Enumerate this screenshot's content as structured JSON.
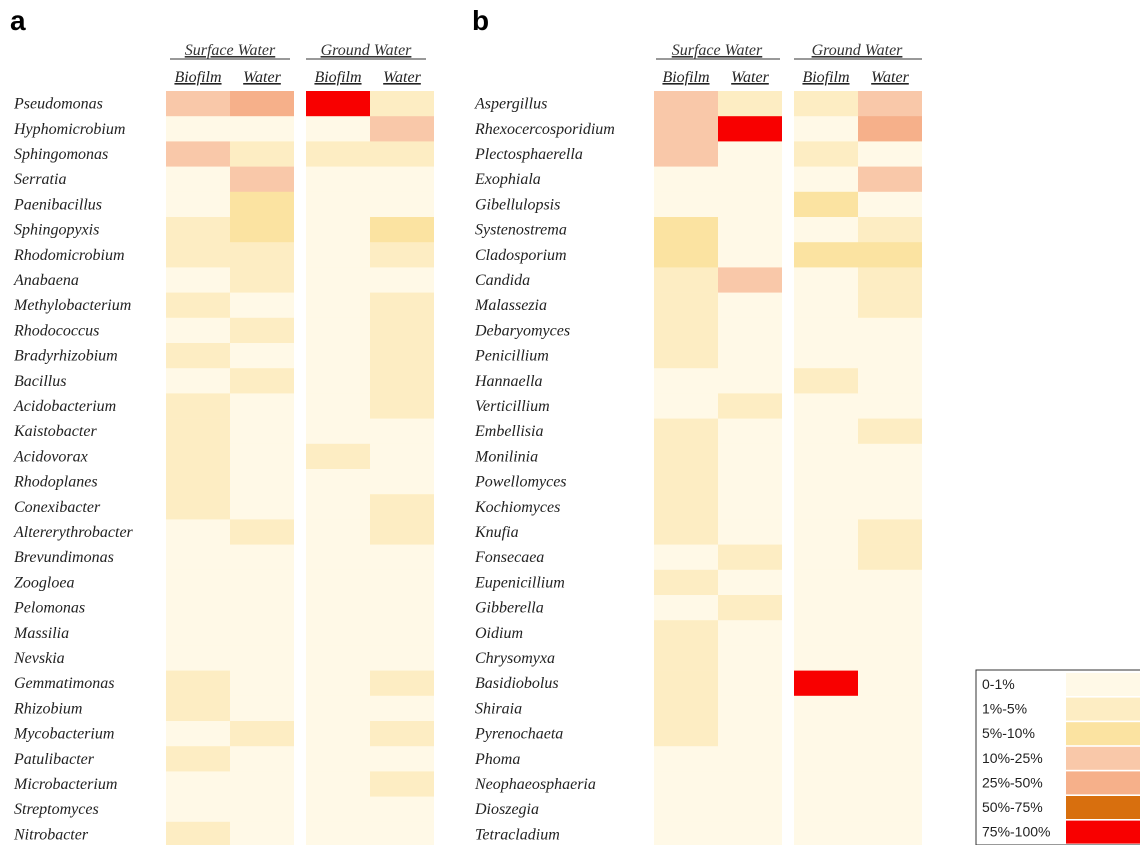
{
  "chart_data": [
    {
      "type": "heatmap",
      "panel": "a",
      "groups": [
        "Surface Water",
        "Ground Water"
      ],
      "columns": [
        "Biofilm",
        "Water",
        "Biofilm",
        "Water"
      ],
      "rows": [
        "Pseudomonas",
        "Hyphomicrobium",
        "Sphingomonas",
        "Serratia",
        "Paenibacillus",
        "Sphingopyxis",
        "Rhodomicrobium",
        "Anabaena",
        "Methylobacterium",
        "Rhodococcus",
        "Bradyrhizobium",
        "Bacillus",
        "Acidobacterium",
        "Kaistobacter",
        "Acidovorax",
        "Rhodoplanes",
        "Conexibacter",
        "Altererythrobacter",
        "Brevundimonas",
        "Zoogloea",
        "Pelomonas",
        "Massilia",
        "Nevskia",
        "Gemmatimonas",
        "Rhizobium",
        "Mycobacterium",
        "Patulibacter",
        "Microbacterium",
        "Streptomyces",
        "Nitrobacter"
      ],
      "values": [
        [
          3,
          4,
          6,
          1
        ],
        [
          0,
          0,
          0,
          3
        ],
        [
          3,
          1,
          1,
          1
        ],
        [
          0,
          3,
          0,
          0
        ],
        [
          0,
          2,
          0,
          0
        ],
        [
          1,
          2,
          0,
          2
        ],
        [
          1,
          1,
          0,
          1
        ],
        [
          0,
          1,
          0,
          0
        ],
        [
          1,
          0,
          0,
          1
        ],
        [
          0,
          1,
          0,
          1
        ],
        [
          1,
          0,
          0,
          1
        ],
        [
          0,
          1,
          0,
          1
        ],
        [
          1,
          0,
          0,
          1
        ],
        [
          1,
          0,
          0,
          0
        ],
        [
          1,
          0,
          1,
          0
        ],
        [
          1,
          0,
          0,
          0
        ],
        [
          1,
          0,
          0,
          1
        ],
        [
          0,
          1,
          0,
          1
        ],
        [
          0,
          0,
          0,
          0
        ],
        [
          0,
          0,
          0,
          0
        ],
        [
          0,
          0,
          0,
          0
        ],
        [
          0,
          0,
          0,
          0
        ],
        [
          0,
          0,
          0,
          0
        ],
        [
          1,
          0,
          0,
          1
        ],
        [
          1,
          0,
          0,
          0
        ],
        [
          0,
          1,
          0,
          1
        ],
        [
          1,
          0,
          0,
          0
        ],
        [
          0,
          0,
          0,
          1
        ],
        [
          0,
          0,
          0,
          0
        ],
        [
          1,
          0,
          0,
          0
        ]
      ]
    },
    {
      "type": "heatmap",
      "panel": "b",
      "groups": [
        "Surface Water",
        "Ground Water"
      ],
      "columns": [
        "Biofilm",
        "Water",
        "Biofilm",
        "Water"
      ],
      "rows": [
        "Aspergillus",
        "Rhexocercosporidium",
        "Plectosphaerella",
        "Exophiala",
        "Gibellulopsis",
        "Systenostrema",
        "Cladosporium",
        "Candida",
        "Malassezia",
        "Debaryomyces",
        "Penicillium",
        "Hannaella",
        "Verticillium",
        "Embellisia",
        "Monilinia",
        "Powellomyces",
        "Kochiomyces",
        "Knufia",
        "Fonsecaea",
        "Eupenicillium",
        "Gibberella",
        "Oidium",
        "Chrysomyxa",
        "Basidiobolus",
        "Shiraia",
        "Pyrenochaeta",
        "Phoma",
        "Neophaeosphaeria",
        "Dioszegia",
        "Tetracladium"
      ],
      "values": [
        [
          3,
          1,
          1,
          3
        ],
        [
          3,
          6,
          0,
          4
        ],
        [
          3,
          0,
          1,
          0
        ],
        [
          0,
          0,
          0,
          3
        ],
        [
          0,
          0,
          2,
          0
        ],
        [
          2,
          0,
          0,
          1
        ],
        [
          2,
          0,
          2,
          2
        ],
        [
          1,
          3,
          0,
          1
        ],
        [
          1,
          0,
          0,
          1
        ],
        [
          1,
          0,
          0,
          0
        ],
        [
          1,
          0,
          0,
          0
        ],
        [
          0,
          0,
          1,
          0
        ],
        [
          0,
          1,
          0,
          0
        ],
        [
          1,
          0,
          0,
          1
        ],
        [
          1,
          0,
          0,
          0
        ],
        [
          1,
          0,
          0,
          0
        ],
        [
          1,
          0,
          0,
          0
        ],
        [
          1,
          0,
          0,
          1
        ],
        [
          0,
          1,
          0,
          1
        ],
        [
          1,
          0,
          0,
          0
        ],
        [
          0,
          1,
          0,
          0
        ],
        [
          1,
          0,
          0,
          0
        ],
        [
          1,
          0,
          0,
          0
        ],
        [
          1,
          0,
          6,
          0
        ],
        [
          1,
          0,
          0,
          0
        ],
        [
          1,
          0,
          0,
          0
        ],
        [
          0,
          0,
          0,
          0
        ],
        [
          0,
          0,
          0,
          0
        ],
        [
          0,
          0,
          0,
          0
        ],
        [
          0,
          0,
          0,
          0
        ]
      ]
    }
  ],
  "legend": {
    "bins": [
      {
        "label": "0-1%",
        "color": "#FFF9E7"
      },
      {
        "label": "1%-5%",
        "color": "#FDEDC3"
      },
      {
        "label": "5%-10%",
        "color": "#FBE3A1"
      },
      {
        "label": "10%-25%",
        "color": "#F9C8A9"
      },
      {
        "label": "25%-50%",
        "color": "#F6B08A"
      },
      {
        "label": "50%-75%",
        "color": "#D86F0E"
      },
      {
        "label": "75%-100%",
        "color": "#F80000"
      }
    ]
  }
}
